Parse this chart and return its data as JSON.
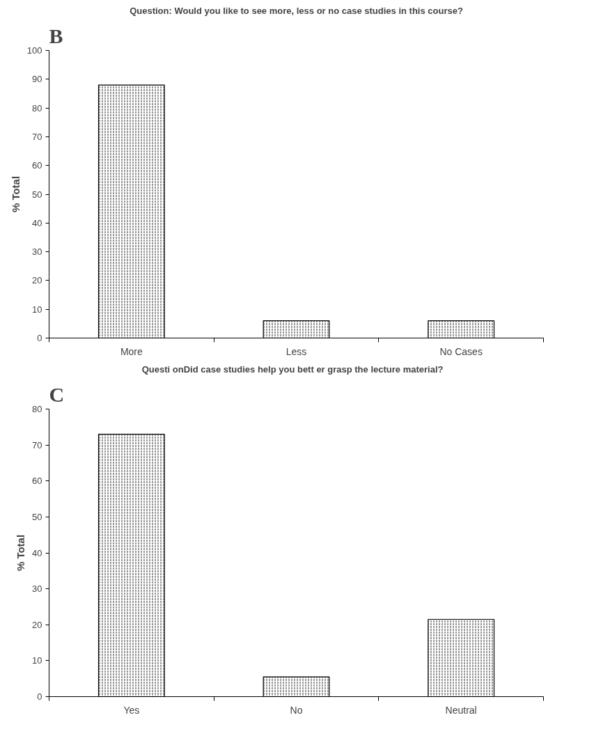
{
  "chart_data": [
    {
      "type": "bar",
      "title": "Question: Would you like to see more, less or no case studies in this course?",
      "ylabel": "% Total",
      "annotations": [
        "B"
      ],
      "categories": [
        "More",
        "Less",
        "No Cases"
      ],
      "values": [
        88,
        6,
        6
      ],
      "color": "#ffffff",
      "ylim": [
        0,
        100
      ],
      "yticks": [
        0,
        10,
        20,
        30,
        40,
        50,
        60,
        70,
        80,
        90,
        100
      ],
      "grid": false
    },
    {
      "type": "bar",
      "title": "Questi  onDid case studies help you bett   er grasp the lecture material?",
      "ylabel": "% Total",
      "annotations": [
        "C"
      ],
      "categories": [
        "Yes",
        "No",
        "Neutral"
      ],
      "values": [
        73,
        5.5,
        21.5
      ],
      "color": "#ffffff",
      "ylim": [
        0,
        80
      ],
      "yticks": [
        0,
        10,
        20,
        30,
        40,
        50,
        60,
        70,
        80
      ],
      "grid": false
    }
  ]
}
